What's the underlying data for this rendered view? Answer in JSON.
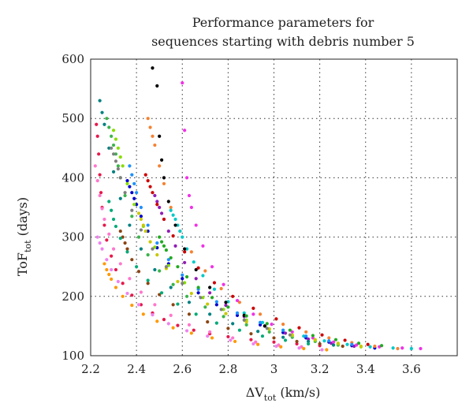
{
  "chart_data": {
    "type": "scatter",
    "title": [
      "Performance parameters for",
      "sequences starting with debris number 5"
    ],
    "xlabel": {
      "main": "ΔV",
      "sub": "tot",
      "unit": " (km/s)"
    },
    "ylabel": {
      "main": "ToF",
      "sub": "tot",
      "unit": " (days)"
    },
    "xlim": [
      2.2,
      3.8
    ],
    "ylim": [
      100,
      600
    ],
    "xticks": [
      2.2,
      2.4,
      2.6,
      2.8,
      3.0,
      3.2,
      3.4,
      3.6
    ],
    "xtick_labels": [
      "2.2",
      "2.4",
      "2.6",
      "2.8",
      "3",
      "3.2",
      "3.4",
      "3.6"
    ],
    "yticks": [
      100,
      200,
      300,
      400,
      500,
      600
    ],
    "ytick_labels": [
      "100",
      "200",
      "300",
      "400",
      "500",
      "600"
    ],
    "grid": true,
    "legend": "none",
    "colors": [
      "#e6194b",
      "#3cb44b",
      "#0000cc",
      "#f58231",
      "#911eb4",
      "#00c8c8",
      "#f032e6",
      "#88dd00",
      "#ff77cc",
      "#008080",
      "#8b4513",
      "#c8c800",
      "#000000",
      "#00aa77",
      "#ff9900",
      "#1e90ff",
      "#7f7f7f",
      "#cc0000",
      "#22aa22",
      "#ee82ee"
    ],
    "series": [
      {
        "x": [
          2.225,
          2.23,
          2.235,
          2.24,
          2.245,
          2.25,
          2.26,
          2.27,
          2.29,
          2.31,
          2.34,
          2.38,
          2.42,
          2.47,
          2.52,
          2.58,
          2.65,
          2.72,
          2.8,
          2.9,
          3.0,
          3.1,
          3.2
        ],
        "y": [
          490,
          470,
          440,
          405,
          375,
          350,
          320,
          295,
          268,
          245,
          222,
          202,
          186,
          172,
          161,
          151,
          143,
          137,
          132,
          127,
          123,
          120,
          117
        ]
      },
      {
        "x": [
          2.27,
          2.28,
          2.29,
          2.3,
          2.31,
          2.32,
          2.33,
          2.35,
          2.38,
          2.41,
          2.45,
          2.5,
          2.56,
          2.62,
          2.7,
          2.78,
          2.88,
          2.98,
          3.08,
          3.18,
          3.28
        ],
        "y": [
          500,
          485,
          470,
          455,
          440,
          420,
          400,
          370,
          335,
          300,
          270,
          243,
          220,
          200,
          182,
          166,
          152,
          140,
          131,
          124,
          118
        ]
      },
      {
        "x": [
          2.36,
          2.37,
          2.38,
          2.39,
          2.4,
          2.42,
          2.45,
          2.49,
          2.54,
          2.6,
          2.67,
          2.75,
          2.84,
          2.94,
          3.04,
          3.14,
          3.24,
          3.34,
          3.44
        ],
        "y": [
          395,
          385,
          375,
          365,
          355,
          335,
          310,
          282,
          255,
          230,
          206,
          186,
          168,
          152,
          139,
          130,
          123,
          117,
          113
        ]
      },
      {
        "x": [
          2.45,
          2.46,
          2.47,
          2.48,
          2.5,
          2.52,
          2.55,
          2.59,
          2.64,
          2.7,
          2.77,
          2.85,
          2.94,
          3.04,
          3.14,
          3.24,
          3.34,
          3.44,
          3.54
        ],
        "y": [
          500,
          485,
          470,
          455,
          420,
          390,
          350,
          310,
          275,
          243,
          213,
          190,
          170,
          153,
          140,
          130,
          122,
          116,
          112
        ]
      },
      {
        "x": [
          2.48,
          2.49,
          2.5,
          2.51,
          2.52,
          2.54,
          2.57,
          2.61,
          2.66,
          2.72,
          2.79,
          2.87,
          2.96,
          3.05,
          3.15,
          3.25,
          3.35
        ],
        "y": [
          370,
          360,
          350,
          340,
          330,
          310,
          285,
          257,
          230,
          206,
          185,
          166,
          150,
          138,
          128,
          121,
          116
        ]
      },
      {
        "x": [
          2.55,
          2.56,
          2.57,
          2.58,
          2.59,
          2.6,
          2.62,
          2.65,
          2.69,
          2.74,
          2.8,
          2.87,
          2.95,
          3.04,
          3.13,
          3.22,
          3.32,
          3.42,
          3.52,
          3.6
        ],
        "y": [
          345,
          337,
          330,
          320,
          310,
          300,
          280,
          258,
          235,
          212,
          191,
          172,
          156,
          143,
          133,
          125,
          119,
          115,
          113,
          112
        ]
      },
      {
        "x": [
          2.6,
          2.61,
          2.62,
          2.63,
          2.64,
          2.66,
          2.69,
          2.73,
          2.78,
          2.84,
          2.91,
          2.99,
          3.08,
          3.17,
          3.26,
          3.36,
          3.46,
          3.56,
          3.64
        ],
        "y": [
          560,
          480,
          400,
          370,
          350,
          320,
          285,
          250,
          220,
          193,
          170,
          153,
          140,
          130,
          123,
          118,
          115,
          113,
          112
        ]
      },
      {
        "x": [
          2.3,
          2.31,
          2.32,
          2.33,
          2.34,
          2.36,
          2.39,
          2.43,
          2.48,
          2.54,
          2.61,
          2.69,
          2.78,
          2.88,
          2.98,
          3.08,
          3.18,
          3.28,
          3.38
        ],
        "y": [
          480,
          465,
          450,
          435,
          420,
          390,
          355,
          318,
          283,
          252,
          223,
          198,
          178,
          160,
          145,
          134,
          126,
          120,
          115
        ]
      },
      {
        "x": [
          2.22,
          2.23,
          2.24,
          2.25,
          2.26,
          2.28,
          2.3,
          2.33,
          2.37,
          2.42,
          2.48,
          2.55,
          2.63,
          2.72,
          2.82,
          2.92,
          3.02,
          3.12
        ],
        "y": [
          420,
          395,
          370,
          348,
          330,
          305,
          280,
          255,
          230,
          207,
          186,
          168,
          152,
          140,
          130,
          123,
          118,
          115
        ]
      },
      {
        "x": [
          2.24,
          2.25,
          2.26,
          2.28,
          2.3,
          2.33,
          2.37,
          2.42,
          2.48,
          2.55,
          2.63,
          2.72,
          2.82,
          2.93,
          3.04,
          3.15,
          3.26
        ],
        "y": [
          530,
          510,
          490,
          450,
          410,
          365,
          320,
          280,
          245,
          215,
          190,
          170,
          154,
          141,
          131,
          124,
          118
        ]
      },
      {
        "x": [
          2.33,
          2.34,
          2.35,
          2.36,
          2.38,
          2.41,
          2.45,
          2.5,
          2.56,
          2.63,
          2.71,
          2.8,
          2.9,
          3.0,
          3.1,
          3.2,
          3.3
        ],
        "y": [
          310,
          300,
          290,
          280,
          262,
          242,
          222,
          203,
          186,
          170,
          157,
          146,
          137,
          130,
          124,
          120,
          116
        ]
      },
      {
        "x": [
          2.41,
          2.42,
          2.43,
          2.44,
          2.46,
          2.49,
          2.53,
          2.58,
          2.64,
          2.71,
          2.79,
          2.88,
          2.98,
          3.08,
          3.18,
          3.28,
          3.38
        ],
        "y": [
          340,
          330,
          320,
          310,
          292,
          270,
          247,
          225,
          205,
          187,
          171,
          157,
          145,
          135,
          127,
          121,
          116
        ]
      },
      {
        "x": [
          2.47,
          2.49,
          2.5,
          2.51,
          2.52,
          2.54,
          2.57,
          2.61,
          2.66,
          2.72,
          2.79,
          2.87,
          2.96
        ],
        "y": [
          585,
          555,
          470,
          430,
          400,
          360,
          320,
          280,
          245,
          215,
          190,
          168,
          150
        ]
      },
      {
        "x": [
          2.28,
          2.29,
          2.3,
          2.31,
          2.33,
          2.36,
          2.4,
          2.45,
          2.51,
          2.58,
          2.66,
          2.75,
          2.85,
          2.95,
          3.05,
          3.15
        ],
        "y": [
          360,
          345,
          330,
          318,
          298,
          275,
          250,
          227,
          206,
          187,
          170,
          155,
          143,
          133,
          126,
          120
        ]
      },
      {
        "x": [
          2.26,
          2.27,
          2.28,
          2.29,
          2.31,
          2.34,
          2.38,
          2.43,
          2.49,
          2.56,
          2.64,
          2.73,
          2.83,
          2.93,
          3.03,
          3.13,
          3.23
        ],
        "y": [
          255,
          245,
          237,
          229,
          215,
          200,
          185,
          170,
          158,
          147,
          138,
          130,
          124,
          119,
          115,
          112,
          110
        ]
      },
      {
        "x": [
          2.37,
          2.38,
          2.39,
          2.4,
          2.42,
          2.45,
          2.49,
          2.54,
          2.6,
          2.67,
          2.75,
          2.84,
          2.94,
          3.04,
          3.14,
          3.24,
          3.34
        ],
        "y": [
          420,
          405,
          390,
          375,
          350,
          320,
          290,
          262,
          236,
          212,
          191,
          172,
          156,
          143,
          133,
          125,
          119
        ]
      },
      {
        "x": [
          2.29,
          2.3,
          2.31,
          2.32,
          2.33,
          2.35,
          2.38,
          2.42,
          2.47,
          2.53,
          2.6,
          2.68,
          2.77,
          2.87,
          2.97,
          3.07
        ],
        "y": [
          450,
          440,
          428,
          415,
          400,
          375,
          345,
          312,
          280,
          250,
          222,
          198,
          178,
          160,
          146,
          135
        ]
      },
      {
        "x": [
          2.44,
          2.45,
          2.46,
          2.47,
          2.49,
          2.52,
          2.56,
          2.61,
          2.67,
          2.74,
          2.82,
          2.91,
          3.01,
          3.11,
          3.21,
          3.31,
          3.41
        ],
        "y": [
          405,
          395,
          385,
          375,
          355,
          330,
          302,
          275,
          248,
          223,
          200,
          180,
          162,
          147,
          135,
          126,
          119
        ]
      },
      {
        "x": [
          2.5,
          2.51,
          2.52,
          2.53,
          2.55,
          2.58,
          2.62,
          2.67,
          2.73,
          2.8,
          2.88,
          2.97,
          3.07,
          3.17,
          3.27,
          3.37,
          3.47
        ],
        "y": [
          300,
          292,
          285,
          278,
          265,
          250,
          233,
          215,
          198,
          182,
          167,
          154,
          143,
          134,
          127,
          121,
          117
        ]
      },
      {
        "x": [
          2.23,
          2.24,
          2.25,
          2.27,
          2.29,
          2.32,
          2.36,
          2.41,
          2.47,
          2.54,
          2.62,
          2.71,
          2.81,
          2.91,
          3.01,
          3.11,
          3.21
        ],
        "y": [
          300,
          290,
          280,
          262,
          245,
          225,
          205,
          186,
          169,
          154,
          142,
          133,
          126,
          120,
          116,
          113,
          110
        ]
      }
    ]
  }
}
